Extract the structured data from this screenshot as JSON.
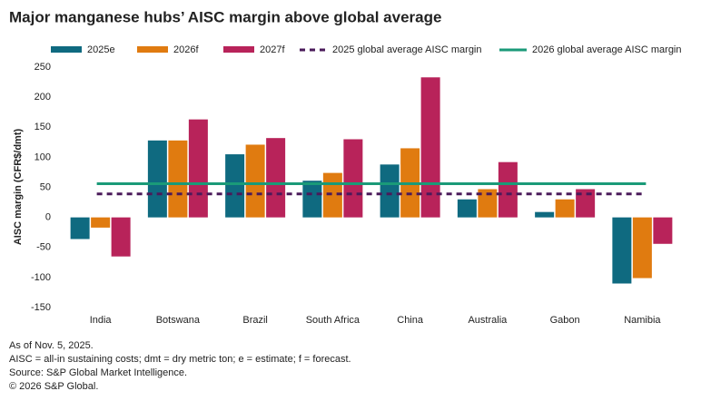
{
  "chart_data": {
    "type": "bar",
    "title": "Major manganese hubs’ AISC margin above global average",
    "y_label": "AISC margin (CFR$/dmt)",
    "categories": [
      "India",
      "Botswana",
      "Brazil",
      "South Africa",
      "China",
      "Australia",
      "Gabon",
      "Namibia"
    ],
    "series": [
      {
        "name": "2025e",
        "color": "#0f6a80",
        "values": [
          -36,
          128,
          105,
          61,
          88,
          30,
          9,
          -110
        ]
      },
      {
        "name": "2026f",
        "color": "#e07b10",
        "values": [
          -17,
          128,
          121,
          74,
          115,
          47,
          30,
          -101
        ]
      },
      {
        "name": "2027f",
        "color": "#b8235a",
        "values": [
          -65,
          163,
          132,
          130,
          233,
          92,
          47,
          -44
        ]
      }
    ],
    "reference_lines": [
      {
        "name": "2025 global average AISC margin",
        "value": 39,
        "color": "#4a1a5a",
        "dashed": true
      },
      {
        "name": "2026 global average AISC margin",
        "value": 56,
        "color": "#1a9a78",
        "dashed": false
      }
    ],
    "ylim": [
      -150,
      250
    ],
    "yticks": [
      -150,
      -100,
      -50,
      0,
      50,
      100,
      150,
      200,
      250
    ],
    "notes": [
      "As of Nov. 5, 2025.",
      "AISC = all-in sustaining costs; dmt = dry metric ton; e = estimate; f = forecast.",
      "Source: S&P Global Market Intelligence.",
      "© 2026 S&P Global."
    ]
  }
}
